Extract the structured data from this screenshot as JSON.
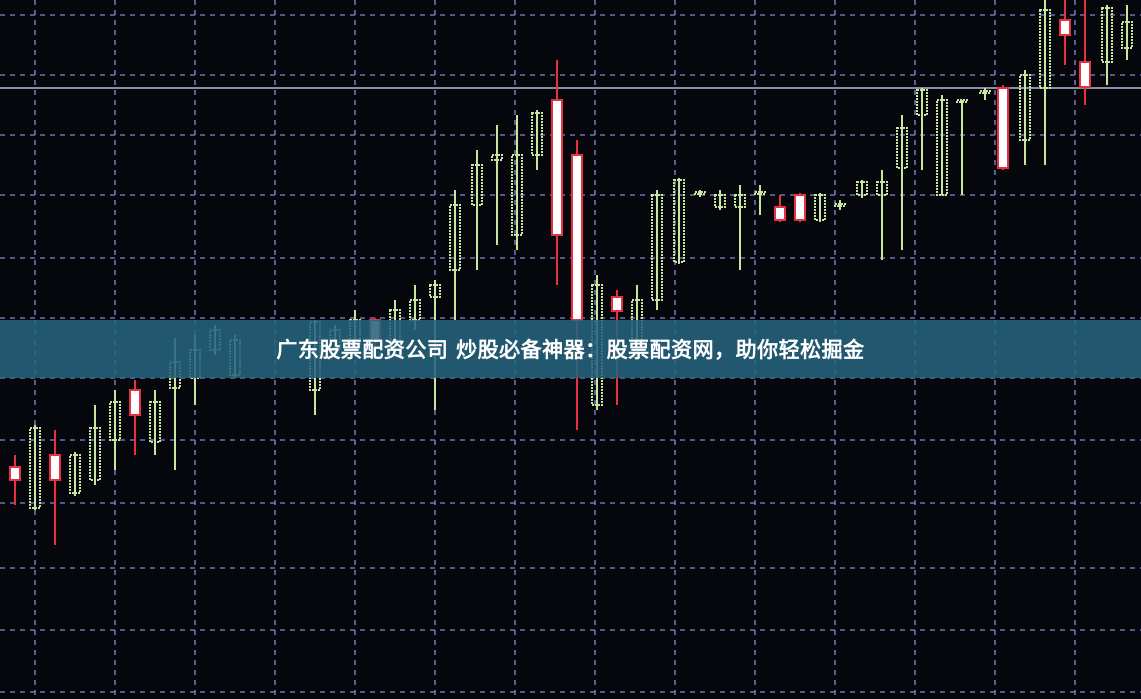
{
  "banner": {
    "title": "广东股票配资公司 炒股必备神器：股票配资网，助你轻松掘金"
  },
  "colors": {
    "background": "#06070c",
    "grid": "#8a8fd8",
    "bullish": "#c8e6a0",
    "bearish": "#e83040",
    "banner": "#26647d"
  }
}
